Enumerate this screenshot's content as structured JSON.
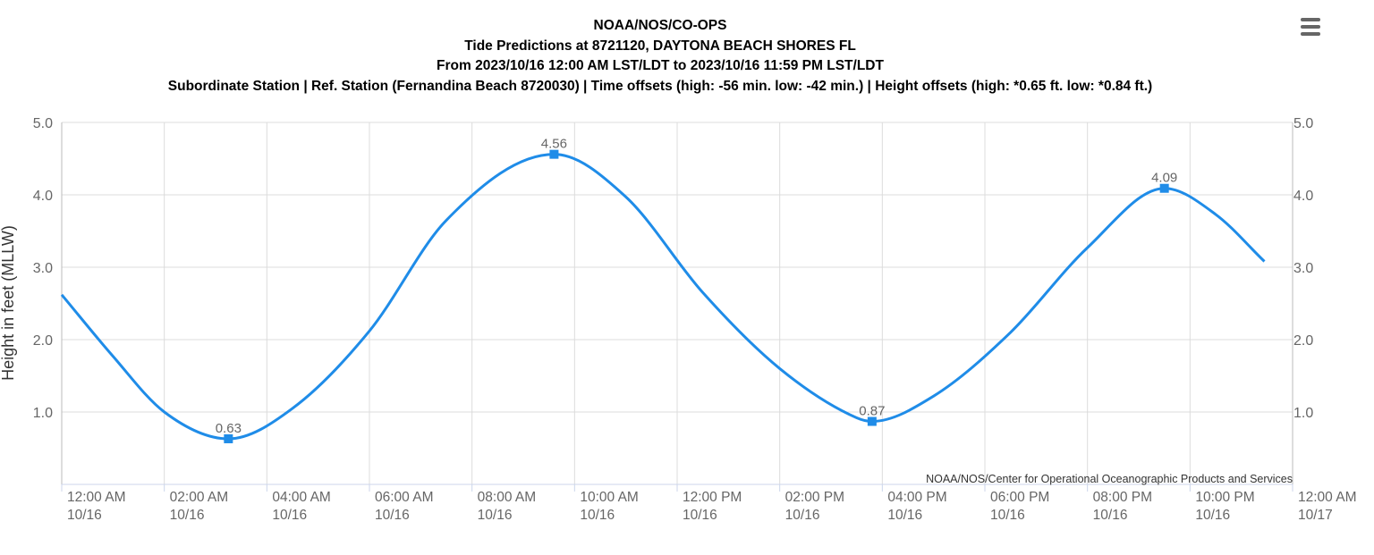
{
  "titles": {
    "line1": "NOAA/NOS/CO-OPS",
    "line2": "Tide Predictions at 8721120, DAYTONA BEACH SHORES FL",
    "line3": "From 2023/10/16 12:00 AM LST/LDT to 2023/10/16 11:59 PM LST/LDT",
    "line4": "Subordinate Station | Ref. Station (Fernandina Beach 8720030) | Time offsets (high: -56 min. low: -42 min.) | Height offsets (high: *0.65 ft. low: *0.84 ft.)"
  },
  "menu": {
    "icon": "hamburger-menu-icon"
  },
  "colors": {
    "series": "#1f8ce8",
    "grid": "#dcdcdc",
    "axis_text": "#666666"
  },
  "chart_data": {
    "type": "line",
    "title": "NOAA/NOS/CO-OPS",
    "ylabel": "Height in feet (MLLW)",
    "ylim": [
      0,
      5
    ],
    "y_ticks": [
      "1.0",
      "2.0",
      "3.0",
      "4.0",
      "5.0"
    ],
    "y_tick_values": [
      1,
      2,
      3,
      4,
      5
    ],
    "xlim_hours": [
      0,
      24
    ],
    "x_ticks": [
      {
        "hour": 0,
        "time": "12:00 AM",
        "date": "10/16"
      },
      {
        "hour": 2,
        "time": "02:00 AM",
        "date": "10/16"
      },
      {
        "hour": 4,
        "time": "04:00 AM",
        "date": "10/16"
      },
      {
        "hour": 6,
        "time": "06:00 AM",
        "date": "10/16"
      },
      {
        "hour": 8,
        "time": "08:00 AM",
        "date": "10/16"
      },
      {
        "hour": 10,
        "time": "10:00 AM",
        "date": "10/16"
      },
      {
        "hour": 12,
        "time": "12:00 PM",
        "date": "10/16"
      },
      {
        "hour": 14,
        "time": "02:00 PM",
        "date": "10/16"
      },
      {
        "hour": 16,
        "time": "04:00 PM",
        "date": "10/16"
      },
      {
        "hour": 18,
        "time": "06:00 PM",
        "date": "10/16"
      },
      {
        "hour": 20,
        "time": "08:00 PM",
        "date": "10/16"
      },
      {
        "hour": 22,
        "time": "10:00 PM",
        "date": "10/16"
      },
      {
        "hour": 24,
        "time": "12:00 AM",
        "date": "10/17"
      }
    ],
    "series": [
      {
        "x_hours": [
          0,
          1,
          2,
          3.25,
          4.5,
          6,
          7.5,
          9.6,
          11,
          12.5,
          14,
          15.5,
          15.8,
          17,
          18.5,
          20,
          21.5,
          22.5,
          23.45
        ],
        "values": [
          2.62,
          1.77,
          1.0,
          0.63,
          1.05,
          2.12,
          3.65,
          4.56,
          3.97,
          2.65,
          1.6,
          0.92,
          0.87,
          1.22,
          2.1,
          3.27,
          4.09,
          3.73,
          3.08
        ]
      }
    ],
    "extrema": [
      {
        "hour": 3.25,
        "value": 0.63,
        "label": "0.63"
      },
      {
        "hour": 9.6,
        "value": 4.56,
        "label": "4.56"
      },
      {
        "hour": 15.8,
        "value": 0.87,
        "label": "0.87"
      },
      {
        "hour": 21.5,
        "value": 4.09,
        "label": "4.09"
      }
    ],
    "credits": "NOAA/NOS/Center for Operational Oceanographic Products and Services",
    "grid": true,
    "legend": "none"
  }
}
